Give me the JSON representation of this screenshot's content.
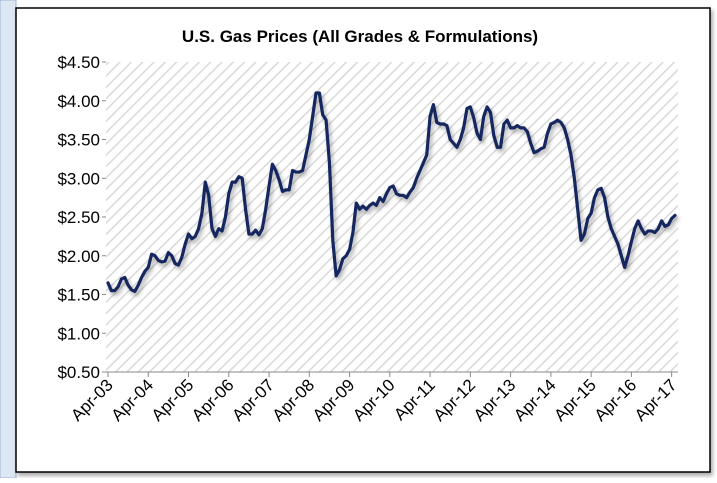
{
  "chart_data": {
    "type": "line",
    "title": "U.S. Gas Prices (All Grades & Formulations)",
    "x": [
      "2003-04",
      "2003-05",
      "2003-06",
      "2003-07",
      "2003-08",
      "2003-09",
      "2003-10",
      "2003-11",
      "2003-12",
      "2004-01",
      "2004-02",
      "2004-03",
      "2004-04",
      "2004-05",
      "2004-06",
      "2004-07",
      "2004-08",
      "2004-09",
      "2004-10",
      "2004-11",
      "2004-12",
      "2005-01",
      "2005-02",
      "2005-03",
      "2005-04",
      "2005-05",
      "2005-06",
      "2005-07",
      "2005-08",
      "2005-09",
      "2005-10",
      "2005-11",
      "2005-12",
      "2006-01",
      "2006-02",
      "2006-03",
      "2006-04",
      "2006-05",
      "2006-06",
      "2006-07",
      "2006-08",
      "2006-09",
      "2006-10",
      "2006-11",
      "2006-12",
      "2007-01",
      "2007-02",
      "2007-03",
      "2007-04",
      "2007-05",
      "2007-06",
      "2007-07",
      "2007-08",
      "2007-09",
      "2007-10",
      "2007-11",
      "2007-12",
      "2008-01",
      "2008-02",
      "2008-03",
      "2008-04",
      "2008-05",
      "2008-06",
      "2008-07",
      "2008-08",
      "2008-09",
      "2008-10",
      "2008-11",
      "2008-12",
      "2009-01",
      "2009-02",
      "2009-03",
      "2009-04",
      "2009-05",
      "2009-06",
      "2009-07",
      "2009-08",
      "2009-09",
      "2009-10",
      "2009-11",
      "2009-12",
      "2010-01",
      "2010-02",
      "2010-03",
      "2010-04",
      "2010-05",
      "2010-06",
      "2010-07",
      "2010-08",
      "2010-09",
      "2010-10",
      "2010-11",
      "2010-12",
      "2011-01",
      "2011-02",
      "2011-03",
      "2011-04",
      "2011-05",
      "2011-06",
      "2011-07",
      "2011-08",
      "2011-09",
      "2011-10",
      "2011-11",
      "2011-12",
      "2012-01",
      "2012-02",
      "2012-03",
      "2012-04",
      "2012-05",
      "2012-06",
      "2012-07",
      "2012-08",
      "2012-09",
      "2012-10",
      "2012-11",
      "2012-12",
      "2013-01",
      "2013-02",
      "2013-03",
      "2013-04",
      "2013-05",
      "2013-06",
      "2013-07",
      "2013-08",
      "2013-09",
      "2013-10",
      "2013-11",
      "2013-12",
      "2014-01",
      "2014-02",
      "2014-03",
      "2014-04",
      "2014-05",
      "2014-06",
      "2014-07",
      "2014-08",
      "2014-09",
      "2014-10",
      "2014-11",
      "2014-12",
      "2015-01",
      "2015-02",
      "2015-03",
      "2015-04",
      "2015-05",
      "2015-06",
      "2015-07",
      "2015-08",
      "2015-09",
      "2015-10",
      "2015-11",
      "2015-12",
      "2016-01",
      "2016-02",
      "2016-03",
      "2016-04",
      "2016-05",
      "2016-06",
      "2016-07",
      "2016-08",
      "2016-09",
      "2016-10",
      "2016-11",
      "2016-12",
      "2017-01",
      "2017-02",
      "2017-03",
      "2017-04",
      "2017-05"
    ],
    "series": [
      {
        "name": "U.S. Gas Price",
        "color": "#14275e",
        "values": [
          1.65,
          1.55,
          1.55,
          1.6,
          1.7,
          1.72,
          1.62,
          1.56,
          1.54,
          1.62,
          1.72,
          1.8,
          1.85,
          2.02,
          2.0,
          1.94,
          1.92,
          1.93,
          2.04,
          2.0,
          1.9,
          1.88,
          1.98,
          2.15,
          2.28,
          2.22,
          2.25,
          2.35,
          2.55,
          2.95,
          2.78,
          2.35,
          2.25,
          2.35,
          2.32,
          2.5,
          2.8,
          2.95,
          2.95,
          3.02,
          3.0,
          2.6,
          2.28,
          2.28,
          2.33,
          2.27,
          2.35,
          2.6,
          2.9,
          3.18,
          3.1,
          2.98,
          2.83,
          2.85,
          2.85,
          3.1,
          3.08,
          3.08,
          3.1,
          3.3,
          3.5,
          3.8,
          4.1,
          4.1,
          3.82,
          3.75,
          3.2,
          2.2,
          1.74,
          1.82,
          1.96,
          2.0,
          2.08,
          2.3,
          2.68,
          2.6,
          2.64,
          2.6,
          2.65,
          2.68,
          2.65,
          2.75,
          2.7,
          2.8,
          2.88,
          2.9,
          2.8,
          2.78,
          2.78,
          2.75,
          2.82,
          2.88,
          3.0,
          3.1,
          3.2,
          3.3,
          3.8,
          3.95,
          3.72,
          3.7,
          3.7,
          3.68,
          3.5,
          3.45,
          3.4,
          3.5,
          3.65,
          3.9,
          3.92,
          3.78,
          3.58,
          3.5,
          3.8,
          3.92,
          3.85,
          3.55,
          3.4,
          3.4,
          3.7,
          3.75,
          3.65,
          3.65,
          3.68,
          3.65,
          3.65,
          3.6,
          3.45,
          3.33,
          3.35,
          3.38,
          3.4,
          3.58,
          3.7,
          3.72,
          3.75,
          3.72,
          3.65,
          3.5,
          3.3,
          3.0,
          2.6,
          2.2,
          2.28,
          2.48,
          2.55,
          2.75,
          2.85,
          2.87,
          2.75,
          2.5,
          2.35,
          2.25,
          2.15,
          2.0,
          1.85,
          2.0,
          2.18,
          2.35,
          2.45,
          2.35,
          2.28,
          2.32,
          2.32,
          2.3,
          2.35,
          2.45,
          2.38,
          2.4,
          2.48,
          2.52
        ]
      }
    ],
    "xlim": [
      "2003-04",
      "2017-05"
    ],
    "xticks": [
      {
        "value": "2003-04",
        "label": "Apr-03"
      },
      {
        "value": "2004-04",
        "label": "Apr-04"
      },
      {
        "value": "2005-04",
        "label": "Apr-05"
      },
      {
        "value": "2006-04",
        "label": "Apr-06"
      },
      {
        "value": "2007-04",
        "label": "Apr-07"
      },
      {
        "value": "2008-04",
        "label": "Apr-08"
      },
      {
        "value": "2009-04",
        "label": "Apr-09"
      },
      {
        "value": "2010-04",
        "label": "Apr-10"
      },
      {
        "value": "2011-04",
        "label": "Apr-11"
      },
      {
        "value": "2012-04",
        "label": "Apr-12"
      },
      {
        "value": "2013-04",
        "label": "Apr-13"
      },
      {
        "value": "2014-04",
        "label": "Apr-14"
      },
      {
        "value": "2015-04",
        "label": "Apr-15"
      },
      {
        "value": "2016-04",
        "label": "Apr-16"
      },
      {
        "value": "2017-04",
        "label": "Apr-17"
      }
    ],
    "ylim": [
      0.5,
      4.5
    ],
    "yticks": [
      {
        "value": 0.5,
        "label": "$0.50"
      },
      {
        "value": 1,
        "label": "$1.00"
      },
      {
        "value": 1.5,
        "label": "$1.50"
      },
      {
        "value": 2,
        "label": "$2.00"
      },
      {
        "value": 2.5,
        "label": "$2.50"
      },
      {
        "value": 3,
        "label": "$3.00"
      },
      {
        "value": 3.5,
        "label": "$3.50"
      },
      {
        "value": 4,
        "label": "$4.00"
      },
      {
        "value": 4.5,
        "label": "$4.50"
      }
    ],
    "grid": false
  }
}
